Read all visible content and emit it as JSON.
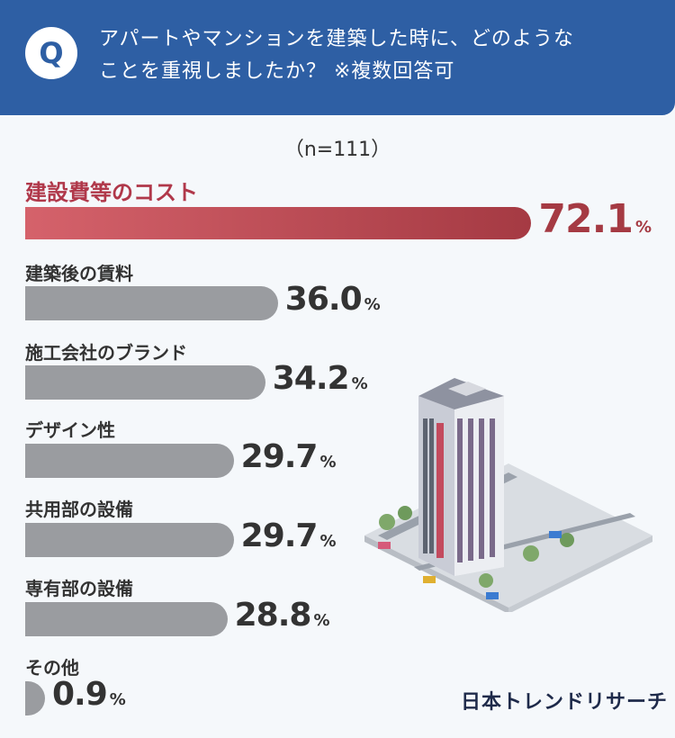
{
  "header": {
    "badge": "Q",
    "question_line1": "アパートやマンションを建築した時に、どのような",
    "question_line2": "ことを重視しましたか？ ※複数回答可"
  },
  "sample_size": "（n=111）",
  "logo": "日本トレンドリサーチ",
  "colors": {
    "header": "#2e5fa4",
    "highlight": "#a53a43",
    "bar": "#9a9ca0"
  },
  "chart_data": {
    "type": "bar",
    "orientation": "horizontal",
    "unit": "%",
    "categories": [
      "建設費等のコスト",
      "建築後の賃料",
      "施工会社のブランド",
      "デザイン性",
      "共用部の設備",
      "専有部の設備",
      "その他"
    ],
    "values": [
      72.1,
      36.0,
      34.2,
      29.7,
      29.7,
      28.8,
      0.9
    ],
    "value_labels": [
      "72.1",
      "36.0",
      "34.2",
      "29.7",
      "29.7",
      "28.8",
      "0.9"
    ],
    "highlight_index": 0,
    "xlim": [
      0,
      100
    ]
  }
}
